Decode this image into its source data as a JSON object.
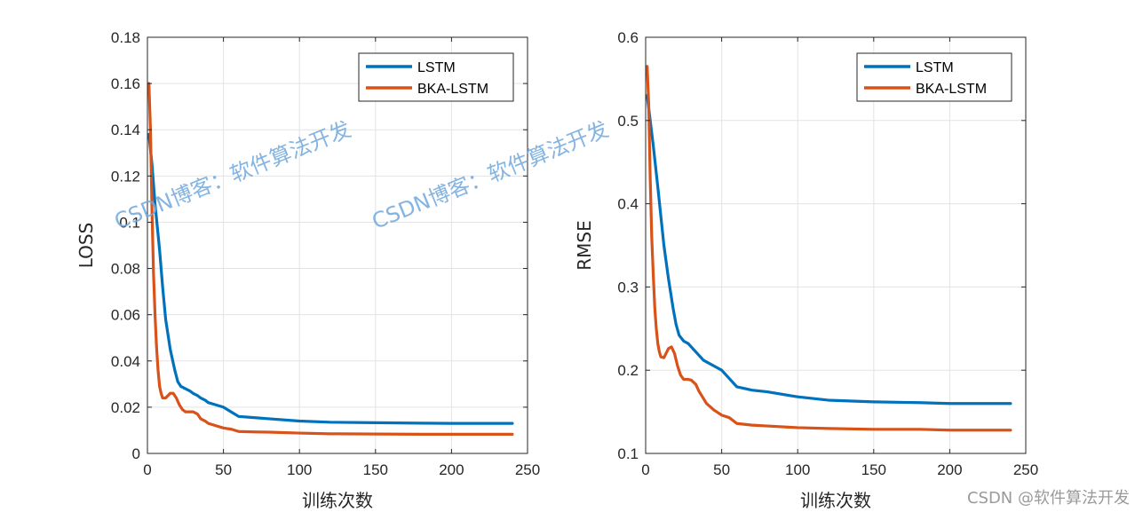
{
  "watermarks": [
    "CSDN博客：软件算法开发",
    "CSDN博客：软件算法开发"
  ],
  "corner_text": "CSDN @软件算法开发",
  "colors": {
    "lstm": "#0072BD",
    "bka": "#D95319",
    "grid": "#e3e3e3",
    "axis": "#262626"
  },
  "chart_data": [
    {
      "type": "line",
      "xlabel": "训练次数",
      "ylabel": "LOSS",
      "xlim": [
        0,
        250
      ],
      "ylim": [
        0,
        0.18
      ],
      "xticks": [
        0,
        50,
        100,
        150,
        200,
        250
      ],
      "yticks": [
        0,
        0.02,
        0.04,
        0.06,
        0.08,
        0.1,
        0.12,
        0.14,
        0.16,
        0.18
      ],
      "xtick_labels": [
        "0",
        "50",
        "100",
        "150",
        "200",
        "250"
      ],
      "ytick_labels": [
        "0",
        "0.02",
        "0.04",
        "0.06",
        "0.08",
        "0.1",
        "0.12",
        "0.14",
        "0.16",
        "0.18"
      ],
      "grid": true,
      "legend": "top-right",
      "series": [
        {
          "name": "LSTM",
          "color": "#0072BD",
          "x": [
            1,
            3,
            5,
            8,
            10,
            12,
            15,
            18,
            20,
            22,
            25,
            28,
            30,
            33,
            35,
            38,
            40,
            45,
            50,
            55,
            60,
            70,
            80,
            100,
            120,
            150,
            180,
            200,
            240
          ],
          "y": [
            0.138,
            0.125,
            0.108,
            0.088,
            0.072,
            0.058,
            0.045,
            0.036,
            0.031,
            0.029,
            0.028,
            0.027,
            0.026,
            0.025,
            0.024,
            0.023,
            0.022,
            0.021,
            0.02,
            0.018,
            0.016,
            0.0155,
            0.015,
            0.014,
            0.0135,
            0.0133,
            0.0131,
            0.013,
            0.013
          ]
        },
        {
          "name": "BKA-LSTM",
          "color": "#D95319",
          "x": [
            1,
            2,
            3,
            4,
            5,
            6,
            7,
            8,
            9,
            10,
            12,
            15,
            17,
            19,
            21,
            23,
            25,
            28,
            30,
            33,
            35,
            38,
            40,
            45,
            50,
            55,
            60,
            70,
            80,
            100,
            120,
            150,
            180,
            200,
            240
          ],
          "y": [
            0.16,
            0.14,
            0.105,
            0.078,
            0.06,
            0.046,
            0.036,
            0.029,
            0.026,
            0.024,
            0.024,
            0.026,
            0.026,
            0.024,
            0.021,
            0.019,
            0.018,
            0.018,
            0.018,
            0.017,
            0.015,
            0.014,
            0.013,
            0.012,
            0.011,
            0.0105,
            0.0095,
            0.0093,
            0.0092,
            0.0088,
            0.0085,
            0.0084,
            0.0083,
            0.0083,
            0.0083
          ]
        }
      ]
    },
    {
      "type": "line",
      "xlabel": "训练次数",
      "ylabel": "RMSE",
      "xlim": [
        0,
        250
      ],
      "ylim": [
        0.1,
        0.6
      ],
      "xticks": [
        0,
        50,
        100,
        150,
        200,
        250
      ],
      "yticks": [
        0.1,
        0.2,
        0.3,
        0.4,
        0.5,
        0.6
      ],
      "xtick_labels": [
        "0",
        "50",
        "100",
        "150",
        "200",
        "250"
      ],
      "ytick_labels": [
        "0.1",
        "0.2",
        "0.3",
        "0.4",
        "0.5",
        "0.6"
      ],
      "grid": true,
      "legend": "top-right",
      "series": [
        {
          "name": "LSTM",
          "color": "#0072BD",
          "x": [
            1,
            3,
            5,
            8,
            10,
            12,
            15,
            18,
            20,
            22,
            25,
            28,
            30,
            33,
            35,
            38,
            40,
            45,
            50,
            55,
            60,
            70,
            80,
            100,
            120,
            150,
            180,
            200,
            240
          ],
          "y": [
            0.53,
            0.5,
            0.47,
            0.42,
            0.385,
            0.35,
            0.31,
            0.275,
            0.255,
            0.242,
            0.235,
            0.232,
            0.228,
            0.222,
            0.218,
            0.212,
            0.21,
            0.205,
            0.2,
            0.19,
            0.18,
            0.176,
            0.174,
            0.168,
            0.164,
            0.162,
            0.161,
            0.16,
            0.16
          ]
        },
        {
          "name": "BKA-LSTM",
          "color": "#D95319",
          "x": [
            1,
            2,
            3,
            4,
            5,
            6,
            7,
            8,
            9,
            10,
            12,
            15,
            17,
            19,
            21,
            23,
            25,
            28,
            30,
            33,
            35,
            38,
            40,
            45,
            50,
            55,
            60,
            70,
            80,
            100,
            120,
            150,
            180,
            200,
            240
          ],
          "y": [
            0.565,
            0.52,
            0.43,
            0.36,
            0.315,
            0.275,
            0.25,
            0.232,
            0.222,
            0.216,
            0.215,
            0.226,
            0.228,
            0.22,
            0.205,
            0.194,
            0.189,
            0.189,
            0.188,
            0.183,
            0.175,
            0.166,
            0.16,
            0.152,
            0.146,
            0.143,
            0.136,
            0.134,
            0.133,
            0.131,
            0.13,
            0.129,
            0.129,
            0.128,
            0.128
          ]
        }
      ]
    }
  ]
}
